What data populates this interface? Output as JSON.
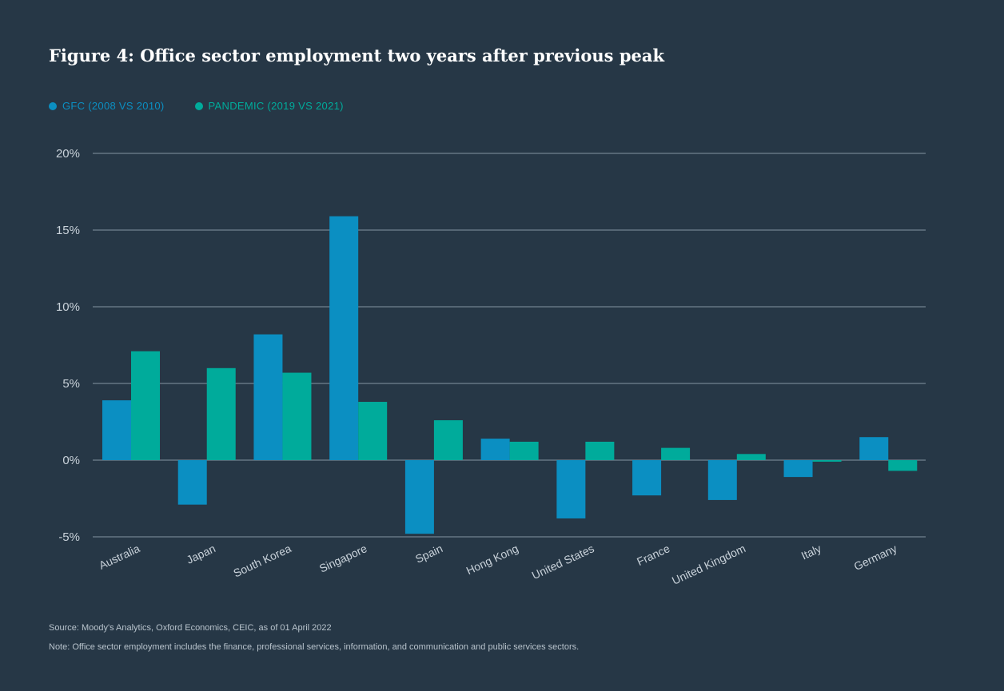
{
  "chart_data": {
    "type": "bar",
    "title": "Figure 4: Office sector employment two years after previous peak",
    "categories": [
      "Australia",
      "Japan",
      "South Korea",
      "Singapore",
      "Spain",
      "Hong Kong",
      "United States",
      "France",
      "United Kingdom",
      "Italy",
      "Germany"
    ],
    "series": [
      {
        "name": "GFC (2008 VS 2010)",
        "color": "#0b8fc2",
        "values": [
          3.9,
          -2.9,
          8.2,
          15.9,
          -4.8,
          1.4,
          -3.8,
          -2.3,
          -2.6,
          -1.1,
          1.5
        ]
      },
      {
        "name": "PANDEMIC (2019 VS 2021)",
        "color": "#00ab9b",
        "values": [
          7.1,
          6.0,
          5.7,
          3.8,
          2.6,
          1.2,
          1.2,
          0.8,
          0.4,
          -0.1,
          -0.7
        ]
      }
    ],
    "ylim": [
      -5,
      20
    ],
    "yticks": [
      20,
      15,
      10,
      5,
      0,
      -5
    ],
    "ytick_labels": [
      "20%",
      "15%",
      "10%",
      "5%",
      "0%",
      "-5%"
    ],
    "xlabel": "",
    "ylabel": "",
    "grid": true,
    "legend_position": "top-left"
  },
  "legend": [
    {
      "label": "GFC (2008 VS 2010)",
      "color": "#0b8fc2"
    },
    {
      "label": "PANDEMIC (2019 VS 2021)",
      "color": "#00ab9b"
    }
  ],
  "footer": {
    "source": "Source: Moody's Analytics, Oxford Economics, CEIC, as of 01 April 2022",
    "note": "Note: Office sector employment includes the finance, professional services, information, and communication and public services sectors."
  },
  "colors": {
    "background": "#263746",
    "gridline": "#8494a2",
    "text": "#c9d2da"
  }
}
